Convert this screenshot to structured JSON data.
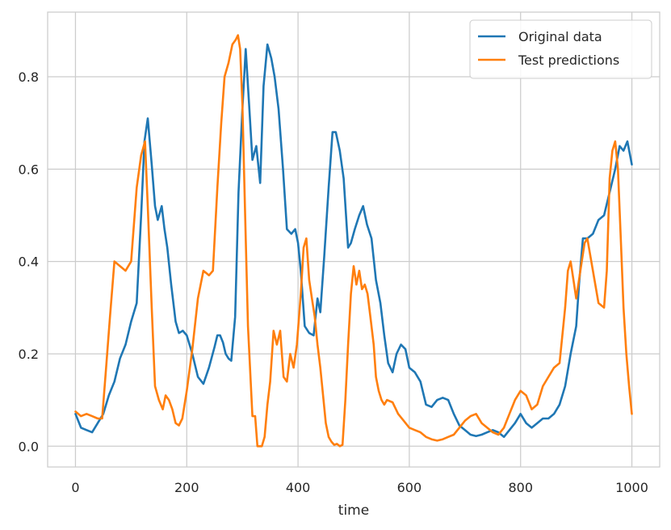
{
  "chart_data": {
    "type": "line",
    "title": "",
    "xlabel": "time",
    "ylabel": "",
    "xlim": [
      -50,
      1050
    ],
    "ylim": [
      -0.045,
      0.94
    ],
    "xticks": [
      0,
      200,
      400,
      600,
      800,
      1000
    ],
    "xtick_labels": [
      "0",
      "200",
      "400",
      "600",
      "800",
      "1000"
    ],
    "yticks": [
      0.0,
      0.2,
      0.4,
      0.6,
      0.8
    ],
    "ytick_labels": [
      "0.0",
      "0.2",
      "0.4",
      "0.6",
      "0.8"
    ],
    "grid": true,
    "legend_position": "top-right",
    "series": [
      {
        "name": "Original data",
        "color": "#1f77b4",
        "x": [
          0,
          10,
          20,
          30,
          40,
          50,
          60,
          70,
          80,
          90,
          100,
          110,
          118,
          124,
          130,
          137,
          143,
          148,
          155,
          160,
          165,
          172,
          180,
          186,
          193,
          200,
          210,
          220,
          230,
          240,
          250,
          255,
          260,
          265,
          270,
          275,
          280,
          287,
          293,
          300,
          306,
          312,
          318,
          325,
          332,
          338,
          345,
          352,
          358,
          365,
          373,
          380,
          388,
          395,
          400,
          405,
          412,
          420,
          428,
          435,
          440,
          447,
          455,
          462,
          468,
          475,
          482,
          490,
          495,
          502,
          510,
          517,
          524,
          532,
          540,
          548,
          555,
          562,
          570,
          577,
          585,
          593,
          600,
          610,
          620,
          630,
          640,
          650,
          660,
          670,
          680,
          690,
          700,
          710,
          720,
          730,
          740,
          750,
          760,
          770,
          780,
          790,
          800,
          810,
          820,
          830,
          840,
          850,
          860,
          870,
          880,
          890,
          900,
          905,
          912,
          920,
          930,
          940,
          950,
          960,
          970,
          978,
          985,
          992,
          1000
        ],
        "values": [
          0.07,
          0.04,
          0.035,
          0.03,
          0.05,
          0.07,
          0.11,
          0.14,
          0.19,
          0.22,
          0.27,
          0.31,
          0.5,
          0.66,
          0.71,
          0.61,
          0.52,
          0.49,
          0.52,
          0.47,
          0.43,
          0.35,
          0.27,
          0.245,
          0.25,
          0.24,
          0.2,
          0.15,
          0.135,
          0.17,
          0.215,
          0.24,
          0.24,
          0.225,
          0.2,
          0.19,
          0.185,
          0.28,
          0.55,
          0.73,
          0.86,
          0.74,
          0.62,
          0.65,
          0.57,
          0.78,
          0.87,
          0.84,
          0.8,
          0.73,
          0.6,
          0.47,
          0.46,
          0.47,
          0.44,
          0.38,
          0.26,
          0.245,
          0.24,
          0.32,
          0.29,
          0.41,
          0.56,
          0.68,
          0.68,
          0.64,
          0.58,
          0.43,
          0.44,
          0.47,
          0.5,
          0.52,
          0.48,
          0.45,
          0.36,
          0.31,
          0.24,
          0.18,
          0.16,
          0.2,
          0.22,
          0.21,
          0.17,
          0.16,
          0.14,
          0.09,
          0.085,
          0.1,
          0.105,
          0.1,
          0.07,
          0.045,
          0.035,
          0.025,
          0.022,
          0.025,
          0.03,
          0.035,
          0.03,
          0.02,
          0.035,
          0.05,
          0.07,
          0.05,
          0.04,
          0.05,
          0.06,
          0.06,
          0.07,
          0.09,
          0.13,
          0.2,
          0.26,
          0.35,
          0.45,
          0.45,
          0.46,
          0.49,
          0.5,
          0.55,
          0.6,
          0.65,
          0.64,
          0.66,
          0.61
        ]
      },
      {
        "name": "Test predictions",
        "color": "#ff7f0e",
        "x": [
          0,
          10,
          20,
          30,
          40,
          48,
          55,
          62,
          70,
          80,
          90,
          100,
          110,
          118,
          125,
          130,
          137,
          143,
          150,
          157,
          162,
          168,
          174,
          180,
          186,
          192,
          200,
          210,
          220,
          230,
          240,
          247,
          255,
          262,
          268,
          275,
          282,
          288,
          292,
          296,
          300,
          305,
          310,
          318,
          323,
          327,
          330,
          335,
          340,
          345,
          350,
          356,
          362,
          368,
          374,
          380,
          386,
          392,
          398,
          405,
          410,
          415,
          420,
          425,
          430,
          435,
          440,
          445,
          450,
          455,
          460,
          465,
          470,
          475,
          480,
          485,
          490,
          495,
          500,
          505,
          510,
          515,
          520,
          525,
          530,
          536,
          540,
          545,
          550,
          555,
          560,
          570,
          580,
          590,
          600,
          610,
          620,
          630,
          640,
          650,
          660,
          670,
          680,
          690,
          700,
          710,
          720,
          730,
          740,
          750,
          760,
          770,
          780,
          790,
          800,
          810,
          820,
          830,
          840,
          850,
          860,
          870,
          880,
          885,
          890,
          895,
          900,
          910,
          915,
          920,
          930,
          940,
          950,
          955,
          960,
          965,
          970,
          975,
          980,
          985,
          990,
          995,
          1000
        ],
        "values": [
          0.075,
          0.065,
          0.07,
          0.065,
          0.06,
          0.06,
          0.17,
          0.28,
          0.4,
          0.39,
          0.38,
          0.4,
          0.56,
          0.63,
          0.66,
          0.52,
          0.3,
          0.13,
          0.1,
          0.08,
          0.11,
          0.1,
          0.08,
          0.05,
          0.045,
          0.06,
          0.12,
          0.21,
          0.32,
          0.38,
          0.37,
          0.38,
          0.56,
          0.7,
          0.8,
          0.83,
          0.87,
          0.88,
          0.89,
          0.86,
          0.74,
          0.5,
          0.26,
          0.065,
          0.065,
          0.0,
          0.0,
          0.0,
          0.02,
          0.09,
          0.14,
          0.25,
          0.22,
          0.25,
          0.15,
          0.14,
          0.2,
          0.17,
          0.22,
          0.33,
          0.43,
          0.45,
          0.36,
          0.32,
          0.28,
          0.22,
          0.17,
          0.11,
          0.05,
          0.02,
          0.01,
          0.003,
          0.005,
          0.0,
          0.003,
          0.1,
          0.22,
          0.33,
          0.39,
          0.35,
          0.38,
          0.34,
          0.35,
          0.33,
          0.28,
          0.22,
          0.15,
          0.12,
          0.1,
          0.09,
          0.1,
          0.095,
          0.07,
          0.055,
          0.04,
          0.035,
          0.03,
          0.02,
          0.015,
          0.012,
          0.015,
          0.02,
          0.025,
          0.04,
          0.055,
          0.065,
          0.07,
          0.05,
          0.04,
          0.03,
          0.025,
          0.04,
          0.07,
          0.1,
          0.12,
          0.11,
          0.08,
          0.09,
          0.13,
          0.15,
          0.17,
          0.18,
          0.3,
          0.38,
          0.4,
          0.36,
          0.32,
          0.4,
          0.44,
          0.45,
          0.38,
          0.31,
          0.3,
          0.38,
          0.58,
          0.64,
          0.66,
          0.6,
          0.45,
          0.3,
          0.2,
          0.13,
          0.07
        ]
      }
    ]
  }
}
